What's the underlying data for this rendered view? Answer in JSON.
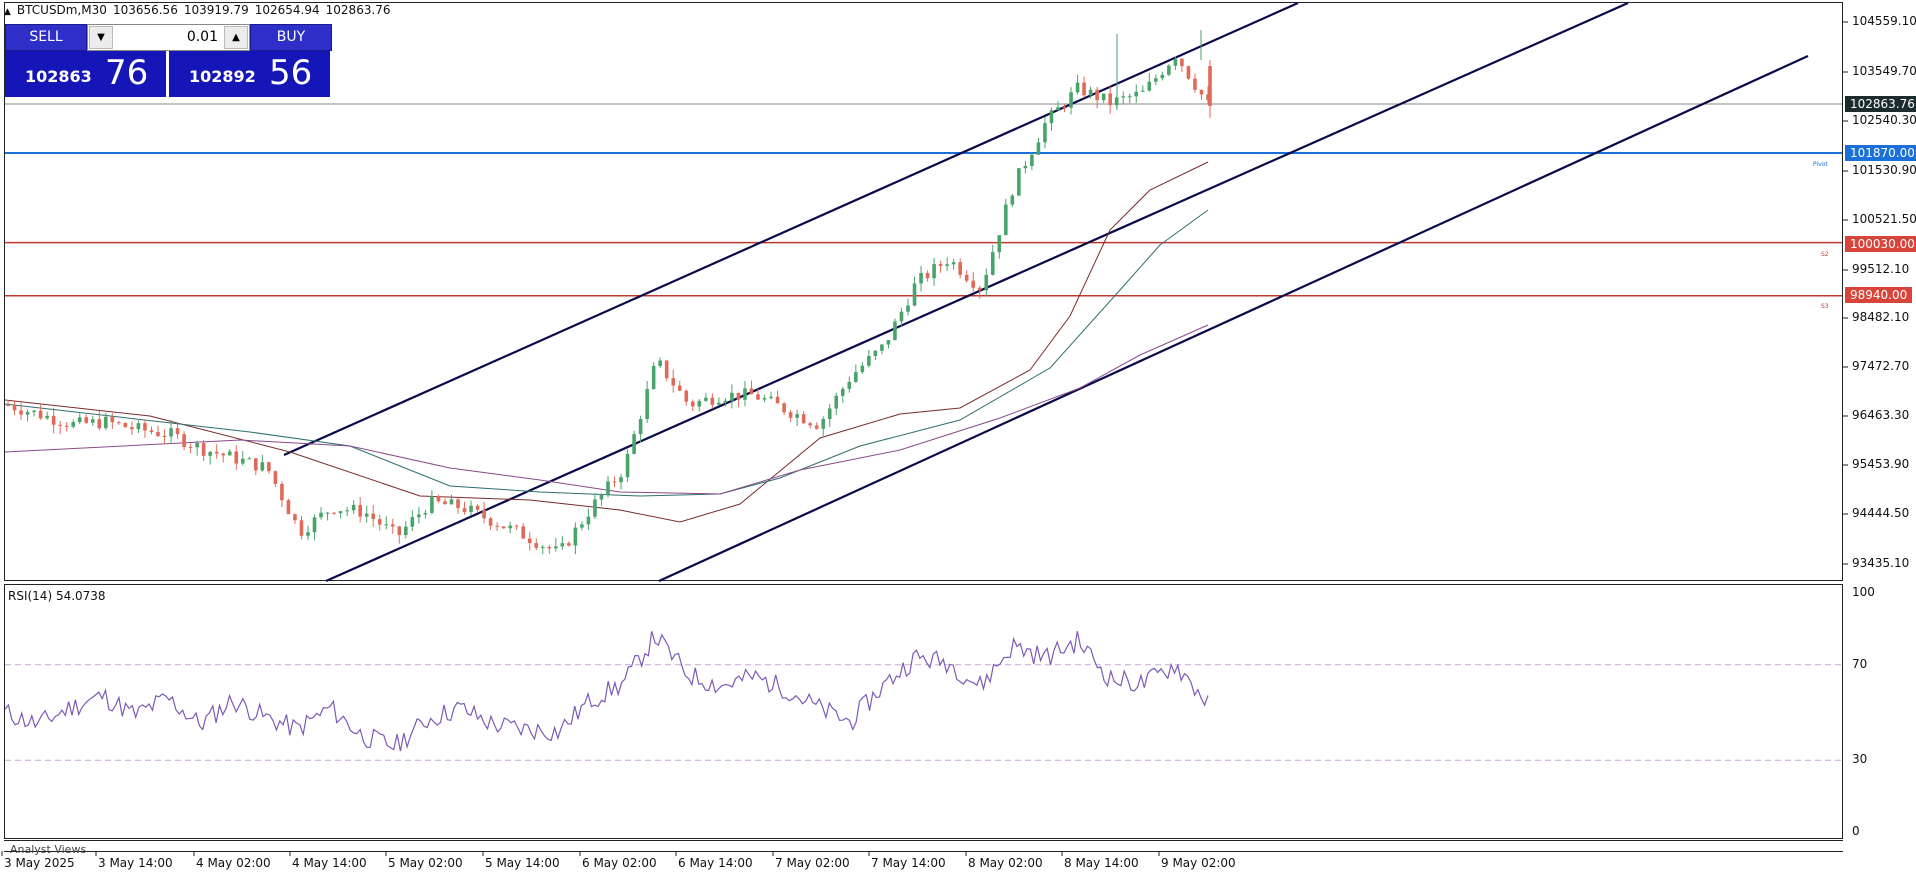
{
  "symbol_header": {
    "symbol": "BTCUSDm,M30",
    "open": "103656.56",
    "high": "103919.79",
    "low": "102654.94",
    "close": "102863.76"
  },
  "trade_panel": {
    "sell_label": "SELL",
    "buy_label": "BUY",
    "lot_value": "0.01",
    "sell_price_main": "102863",
    "sell_price_big": "76",
    "buy_price_main": "102892",
    "buy_price_big": "56",
    "down_icon": "triangle-down-icon",
    "up_icon": "triangle-up-icon"
  },
  "price_axis": {
    "ticks": [
      "104559.10",
      "103549.70",
      "102540.30",
      "101530.90",
      "100521.50",
      "99512.10",
      "98482.10",
      "97472.70",
      "96463.30",
      "95453.90",
      "94444.50",
      "93435.10"
    ],
    "current_price": "102863.76",
    "level_pivot": "101870.00",
    "level_s2": "100030.00",
    "level_s3": "98940.00"
  },
  "level_labels": {
    "pivot": "Pivot",
    "s2": "S2",
    "s3": "S3"
  },
  "rsi": {
    "title": "RSI(14) 54.0738",
    "ticks": [
      "100",
      "70",
      "30",
      "0"
    ]
  },
  "time_axis": [
    "3 May 2025",
    "3 May 14:00",
    "4 May 02:00",
    "4 May 14:00",
    "5 May 02:00",
    "5 May 14:00",
    "6 May 02:00",
    "6 May 14:00",
    "7 May 02:00",
    "7 May 14:00",
    "8 May 02:00",
    "8 May 14:00",
    "9 May 02:00"
  ],
  "analyst_views": "Analyst Views",
  "colors": {
    "bull": "#4aa36b",
    "bear": "#e06a5a",
    "channel": "#0a0a4a",
    "pivot": "#1a6fd8",
    "support": "#c0392b",
    "rsi_line": "#7b5ab5",
    "ma_fast": "#7a2b2b",
    "ma_mid": "#2f6f6f",
    "ma_slow": "#8a4a8a"
  },
  "chart_data": {
    "type": "candlestick",
    "title": "BTCUSDm,M30",
    "ylim": [
      93000,
      104900
    ],
    "x": [
      "3 May 2025",
      "3 May 14:00",
      "4 May 02:00",
      "4 May 14:00",
      "5 May 02:00",
      "5 May 14:00",
      "6 May 02:00",
      "6 May 14:00",
      "7 May 02:00",
      "7 May 14:00",
      "8 May 02:00",
      "8 May 14:00",
      "9 May 02:00"
    ],
    "close_path": [
      96700,
      96500,
      96300,
      96350,
      96200,
      96100,
      95800,
      95600,
      95400,
      94100,
      94600,
      94500,
      94000,
      94700,
      94600,
      94300,
      94000,
      93650,
      94600,
      95400,
      97600,
      96700,
      96900,
      96900,
      96600,
      96300,
      97300,
      97900,
      99200,
      99700,
      99100,
      101200,
      102500,
      103200,
      102900,
      103100,
      103900,
      102860
    ],
    "rsi": {
      "values": [
        50,
        45,
        52,
        57,
        49,
        56,
        45,
        55,
        48,
        43,
        52,
        40,
        36,
        47,
        52,
        45,
        43,
        42,
        55,
        62,
        82,
        66,
        61,
        65,
        60,
        52,
        46,
        61,
        73,
        71,
        61,
        78,
        73,
        80,
        64,
        62,
        70,
        54
      ],
      "levels": [
        70,
        30
      ],
      "ylim": [
        0,
        100
      ]
    },
    "horizontal_levels": [
      {
        "label": "Pivot",
        "value": 101870.0
      },
      {
        "label": "S2",
        "value": 100030.0
      },
      {
        "label": "S3",
        "value": 98940.0
      }
    ]
  }
}
